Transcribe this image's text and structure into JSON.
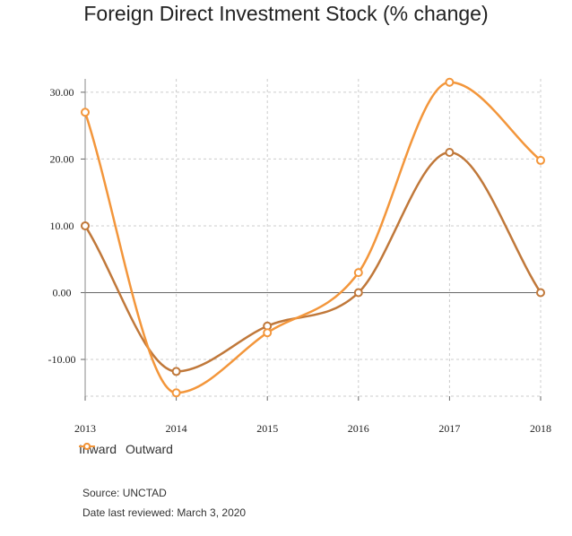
{
  "title": "Foreign Direct Investment Stock (% change)",
  "chart_data": {
    "type": "line",
    "x": [
      "2013",
      "2014",
      "2015",
      "2016",
      "2017",
      "2018"
    ],
    "y_ticks": [
      "30.00",
      "20.00",
      "10.00",
      "0.00",
      "-10.00"
    ],
    "ylim": [
      -15.5,
      32
    ],
    "smooth": true,
    "grid": true,
    "legend_position": "bottom-left",
    "series": [
      {
        "name": "Inward",
        "color": "#c0783a",
        "values": [
          10.0,
          -11.8,
          -5.0,
          0.0,
          21.0,
          0.0
        ]
      },
      {
        "name": "Outward",
        "color": "#f3963b",
        "values": [
          27.0,
          -15.0,
          -6.0,
          3.0,
          31.5,
          19.8
        ]
      }
    ]
  },
  "footer": {
    "source": "Source: UNCTAD",
    "reviewed": "Date last reviewed: March 3, 2020"
  }
}
